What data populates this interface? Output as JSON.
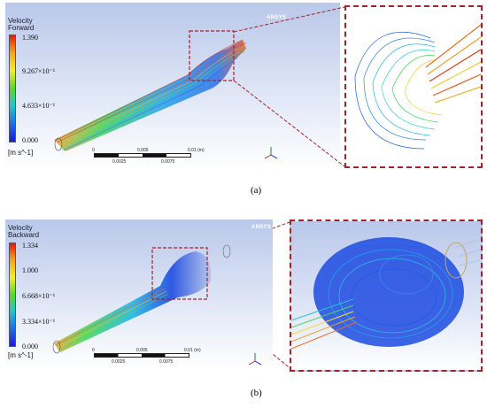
{
  "panels": [
    {
      "caption": "(a)",
      "legend_title_1": "Velocity",
      "legend_title_2": "Forward",
      "colorbar_labels": [
        "1.390",
        "9.267×10⁻¹",
        "4.633×10⁻¹",
        "0.000"
      ],
      "unit": "[m s^-1]",
      "watermark": "ANSYS",
      "scale_top": [
        "0",
        "0.005",
        "0.01 (m)"
      ],
      "scale_bottom": [
        "0.0025",
        "0.0075"
      ]
    },
    {
      "caption": "(b)",
      "legend_title_1": "Velocity",
      "legend_title_2": "Backward",
      "colorbar_labels": [
        "1.334",
        "1.000",
        "6.668×10⁻¹",
        "3.334×10⁻¹",
        "0.000"
      ],
      "unit": "[m s^-1]",
      "watermark": "ANSYS",
      "scale_top": [
        "0",
        "0.005",
        "0.01 (m)"
      ],
      "scale_bottom": [
        "0.0025",
        "0.0075"
      ]
    }
  ],
  "colors": {
    "colorbar": [
      "#e01a12",
      "#f5a31a",
      "#f2ee2a",
      "#59d62e",
      "#20c7c7",
      "#1d6df0",
      "#1a1ae0"
    ],
    "dashed_frame": "#a8202a"
  }
}
